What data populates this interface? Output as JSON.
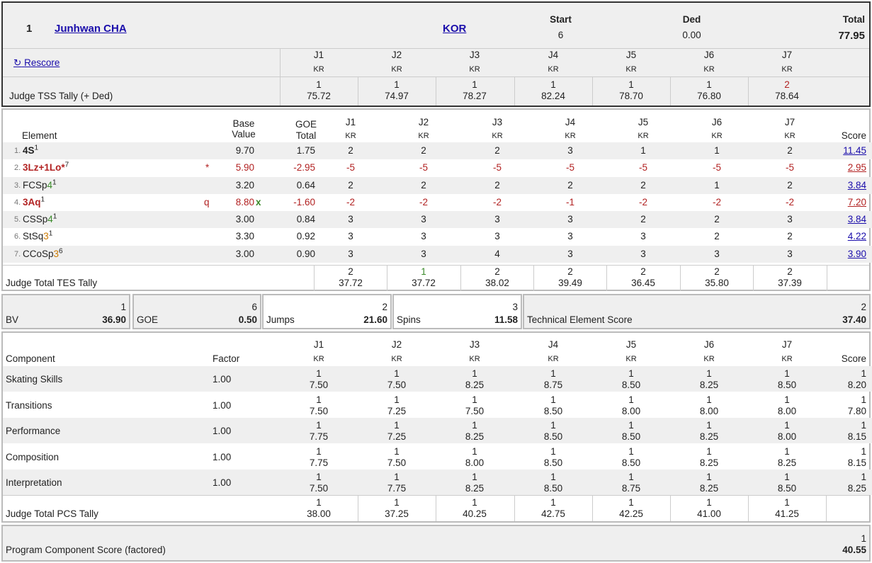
{
  "header": {
    "rank": "1",
    "skater": "Junhwan CHA",
    "nation": "KOR",
    "start_label": "Start",
    "start_value": "6",
    "ded_label": "Ded",
    "ded_value": "0.00",
    "total_label": "Total",
    "total_value": "77.95",
    "rescore": "Rescore",
    "judges": [
      {
        "label": "J1",
        "country": "KR",
        "rank": "1",
        "tss": "75.72"
      },
      {
        "label": "J2",
        "country": "KR",
        "rank": "1",
        "tss": "74.97"
      },
      {
        "label": "J3",
        "country": "KR",
        "rank": "1",
        "tss": "78.27"
      },
      {
        "label": "J4",
        "country": "KR",
        "rank": "1",
        "tss": "82.24"
      },
      {
        "label": "J5",
        "country": "KR",
        "rank": "1",
        "tss": "78.70"
      },
      {
        "label": "J6",
        "country": "KR",
        "rank": "1",
        "tss": "76.80"
      },
      {
        "label": "J7",
        "country": "KR",
        "rank": "2",
        "tss": "78.64"
      }
    ],
    "tss_label": "Judge TSS Tally (+ Ded)"
  },
  "elements": {
    "headers": {
      "element": "Element",
      "base1": "Base",
      "base2": "Value",
      "goe1": "GOE",
      "goe2": "Total",
      "score": "Score"
    },
    "judges": [
      "J1",
      "J2",
      "J3",
      "J4",
      "J5",
      "J6",
      "J7"
    ],
    "country": "KR",
    "rows": [
      {
        "num": "1.",
        "parts": [
          {
            "t": "4S",
            "c": "bold"
          }
        ],
        "sup": "1",
        "note": "",
        "bv": "9.70",
        "bvx": "",
        "goe": "1.75",
        "marks": [
          "2",
          "2",
          "2",
          "3",
          "1",
          "1",
          "2"
        ],
        "score": "11.45",
        "red": false
      },
      {
        "num": "2.",
        "parts": [
          {
            "t": "3Lz+1Lo*",
            "c": "bold red"
          }
        ],
        "sup": "7",
        "note": "*",
        "bv": "5.90",
        "bvx": "",
        "goe": "-2.95",
        "marks": [
          "-5",
          "-5",
          "-5",
          "-5",
          "-5",
          "-5",
          "-5"
        ],
        "score": "2.95",
        "red": true
      },
      {
        "num": "3.",
        "parts": [
          {
            "t": "FCSp",
            "c": ""
          },
          {
            "t": "4",
            "c": "green"
          }
        ],
        "sup": "1",
        "note": "",
        "bv": "3.20",
        "bvx": "",
        "goe": "0.64",
        "marks": [
          "2",
          "2",
          "2",
          "2",
          "2",
          "1",
          "2"
        ],
        "score": "3.84",
        "red": false
      },
      {
        "num": "4.",
        "parts": [
          {
            "t": "3Aq",
            "c": "bold red"
          }
        ],
        "sup": "1",
        "note": "q",
        "bv": "8.80",
        "bvx": "x",
        "goe": "-1.60",
        "marks": [
          "-2",
          "-2",
          "-2",
          "-1",
          "-2",
          "-2",
          "-2"
        ],
        "score": "7.20",
        "red": true
      },
      {
        "num": "5.",
        "parts": [
          {
            "t": "CSSp",
            "c": ""
          },
          {
            "t": "4",
            "c": "green"
          }
        ],
        "sup": "1",
        "note": "",
        "bv": "3.00",
        "bvx": "",
        "goe": "0.84",
        "marks": [
          "3",
          "3",
          "3",
          "3",
          "2",
          "2",
          "3"
        ],
        "score": "3.84",
        "red": false
      },
      {
        "num": "6.",
        "parts": [
          {
            "t": "StSq",
            "c": ""
          },
          {
            "t": "3",
            "c": "orange"
          }
        ],
        "sup": "1",
        "note": "",
        "bv": "3.30",
        "bvx": "",
        "goe": "0.92",
        "marks": [
          "3",
          "3",
          "3",
          "3",
          "3",
          "2",
          "2"
        ],
        "score": "4.22",
        "red": false
      },
      {
        "num": "7.",
        "parts": [
          {
            "t": "CCoSp",
            "c": ""
          },
          {
            "t": "3",
            "c": "orange"
          }
        ],
        "sup": "6",
        "note": "",
        "bv": "3.00",
        "bvx": "",
        "goe": "0.90",
        "marks": [
          "3",
          "3",
          "4",
          "3",
          "3",
          "3",
          "3"
        ],
        "score": "3.90",
        "red": false
      }
    ],
    "tes_label": "Judge Total TES Tally",
    "tes": [
      {
        "rank": "2",
        "value": "37.72"
      },
      {
        "rank": "1",
        "value": "37.72"
      },
      {
        "rank": "2",
        "value": "38.02"
      },
      {
        "rank": "2",
        "value": "39.49"
      },
      {
        "rank": "2",
        "value": "36.45"
      },
      {
        "rank": "2",
        "value": "35.80"
      },
      {
        "rank": "2",
        "value": "37.39"
      }
    ]
  },
  "summary": {
    "bv": {
      "label": "BV",
      "rank": "1",
      "value": "36.90"
    },
    "goe": {
      "label": "GOE",
      "rank": "6",
      "value": "0.50"
    },
    "jumps": {
      "label": "Jumps",
      "rank": "2",
      "value": "21.60"
    },
    "spins": {
      "label": "Spins",
      "rank": "3",
      "value": "11.58"
    },
    "tes": {
      "label": "Technical Element Score",
      "rank": "2",
      "value": "37.40"
    }
  },
  "components": {
    "headers": {
      "component": "Component",
      "factor": "Factor",
      "score": "Score"
    },
    "judges": [
      "J1",
      "J2",
      "J3",
      "J4",
      "J5",
      "J6",
      "J7"
    ],
    "country": "KR",
    "rows": [
      {
        "name": "Skating Skills",
        "factor": "1.00",
        "marks": [
          "7.50",
          "7.50",
          "8.25",
          "8.75",
          "8.50",
          "8.25",
          "8.50"
        ],
        "ranks": [
          "1",
          "1",
          "1",
          "1",
          "1",
          "1",
          "1"
        ],
        "score": "8.20",
        "score_rank": "1"
      },
      {
        "name": "Transitions",
        "factor": "1.00",
        "marks": [
          "7.50",
          "7.25",
          "7.50",
          "8.50",
          "8.00",
          "8.00",
          "8.00"
        ],
        "ranks": [
          "1",
          "1",
          "1",
          "1",
          "1",
          "1",
          "1"
        ],
        "score": "7.80",
        "score_rank": "1"
      },
      {
        "name": "Performance",
        "factor": "1.00",
        "marks": [
          "7.75",
          "7.25",
          "8.25",
          "8.50",
          "8.50",
          "8.25",
          "8.00"
        ],
        "ranks": [
          "1",
          "1",
          "1",
          "1",
          "1",
          "1",
          "1"
        ],
        "score": "8.15",
        "score_rank": "1"
      },
      {
        "name": "Composition",
        "factor": "1.00",
        "marks": [
          "7.75",
          "7.50",
          "8.00",
          "8.50",
          "8.50",
          "8.25",
          "8.25"
        ],
        "ranks": [
          "1",
          "1",
          "1",
          "1",
          "1",
          "1",
          "1"
        ],
        "score": "8.15",
        "score_rank": "1"
      },
      {
        "name": "Interpretation",
        "factor": "1.00",
        "marks": [
          "7.50",
          "7.75",
          "8.25",
          "8.50",
          "8.75",
          "8.25",
          "8.50"
        ],
        "ranks": [
          "1",
          "1",
          "1",
          "1",
          "1",
          "1",
          "1"
        ],
        "score": "8.25",
        "score_rank": "1"
      }
    ],
    "pcs_label": "Judge Total PCS Tally",
    "pcs": [
      {
        "rank": "1",
        "value": "38.00"
      },
      {
        "rank": "1",
        "value": "37.25"
      },
      {
        "rank": "1",
        "value": "40.25"
      },
      {
        "rank": "1",
        "value": "42.75"
      },
      {
        "rank": "1",
        "value": "42.25"
      },
      {
        "rank": "1",
        "value": "41.00"
      },
      {
        "rank": "1",
        "value": "41.25"
      }
    ]
  },
  "pcs_total": {
    "label": "Program Component Score (factored)",
    "rank": "1",
    "value": "40.55"
  }
}
